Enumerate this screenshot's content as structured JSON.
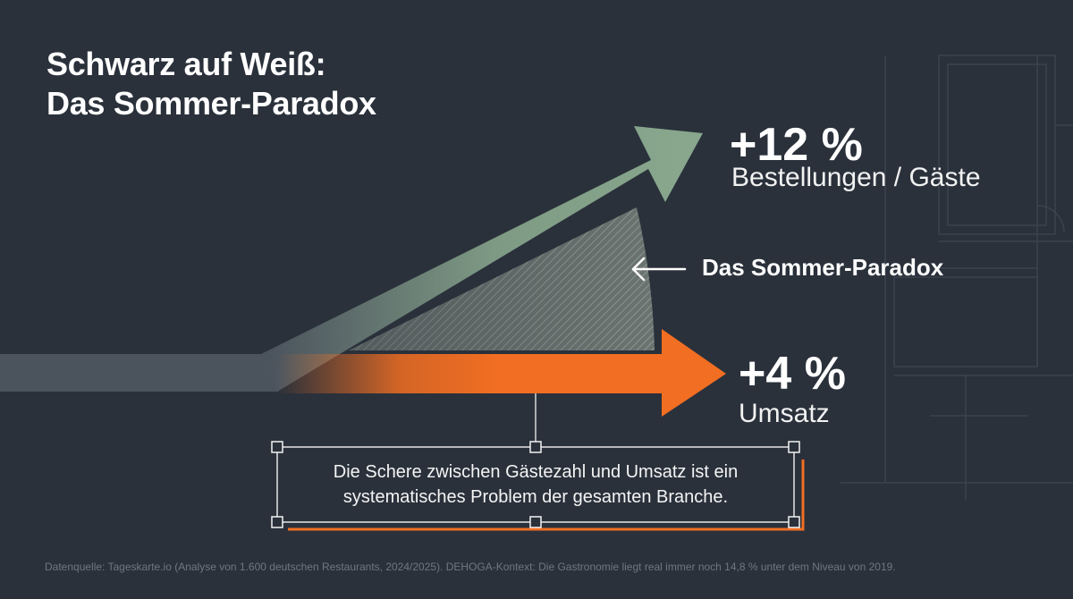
{
  "title": {
    "line1": "Schwarz auf Weiß:",
    "line2": "Das Sommer-Paradox"
  },
  "metrics": {
    "guests": {
      "value": "+12 %",
      "label": "Bestellungen / Gäste"
    },
    "revenue": {
      "value": "+4 %",
      "label": "Umsatz"
    }
  },
  "paradox_label": "Das Sommer-Paradox",
  "callout": {
    "line1": "Die Schere zwischen Gästezahl und Umsatz ist ein",
    "line2": "systematisches Problem der gesamten Branche."
  },
  "source": "Datenquelle: Tageskarte.io (Analyse von 1.600 deutschen Restaurants, 2024/2025). DEHOGA-Kontext: Die Gastronomie liegt real immer noch 14,8 % unter dem Niveau von 2019.",
  "colors": {
    "background": "#2a313b",
    "green_arrow": "#88a78d",
    "orange_arrow": "#f26e22",
    "grey_base": "#4b535d"
  }
}
